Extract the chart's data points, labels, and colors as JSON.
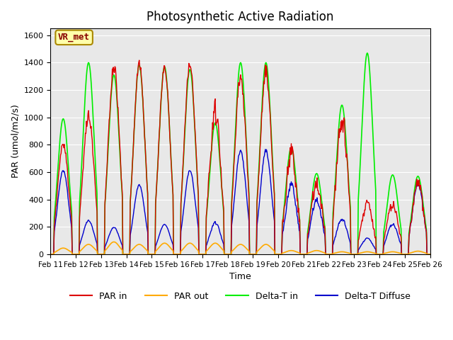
{
  "title": "Photosynthetic Active Radiation",
  "xlabel": "Time",
  "ylabel": "PAR (umol/m2/s)",
  "ylim": [
    0,
    1650
  ],
  "yticks": [
    0,
    200,
    400,
    600,
    800,
    1000,
    1200,
    1400,
    1600
  ],
  "annotation_text": "VR_met",
  "bg_color": "#e8e8e8",
  "colors": {
    "par_in": "#dd0000",
    "par_out": "#ffaa00",
    "delta_t_in": "#00ee00",
    "delta_t_diffuse": "#0000cc"
  },
  "legend_labels": [
    "PAR in",
    "PAR out",
    "Delta-T in",
    "Delta-T Diffuse"
  ],
  "x_tick_labels": [
    "Feb 11",
    "Feb 12",
    "Feb 13",
    "Feb 14",
    "Feb 15",
    "Feb 16",
    "Feb 17",
    "Feb 18",
    "Feb 19",
    "Feb 20",
    "Feb 21",
    "Feb 22",
    "Feb 23",
    "Feb 24",
    "Feb 25",
    "Feb 26"
  ],
  "n_days": 15,
  "pts_per_day": 48,
  "par_in_peaks": [
    830,
    1050,
    1430,
    1420,
    1400,
    1430,
    1140,
    1350,
    1390,
    810,
    580,
    1100,
    400,
    400,
    570
  ],
  "par_out_peaks": [
    50,
    80,
    100,
    80,
    90,
    90,
    90,
    80,
    80,
    30,
    30,
    20,
    20,
    20,
    25
  ],
  "delta_t_peaks": [
    990,
    1400,
    1310,
    1380,
    1370,
    1350,
    960,
    1400,
    1400,
    780,
    590,
    1090,
    1470,
    580,
    570
  ],
  "delta_d_peaks": [
    620,
    250,
    200,
    510,
    220,
    620,
    240,
    770,
    770,
    530,
    420,
    270,
    120,
    230,
    530
  ]
}
